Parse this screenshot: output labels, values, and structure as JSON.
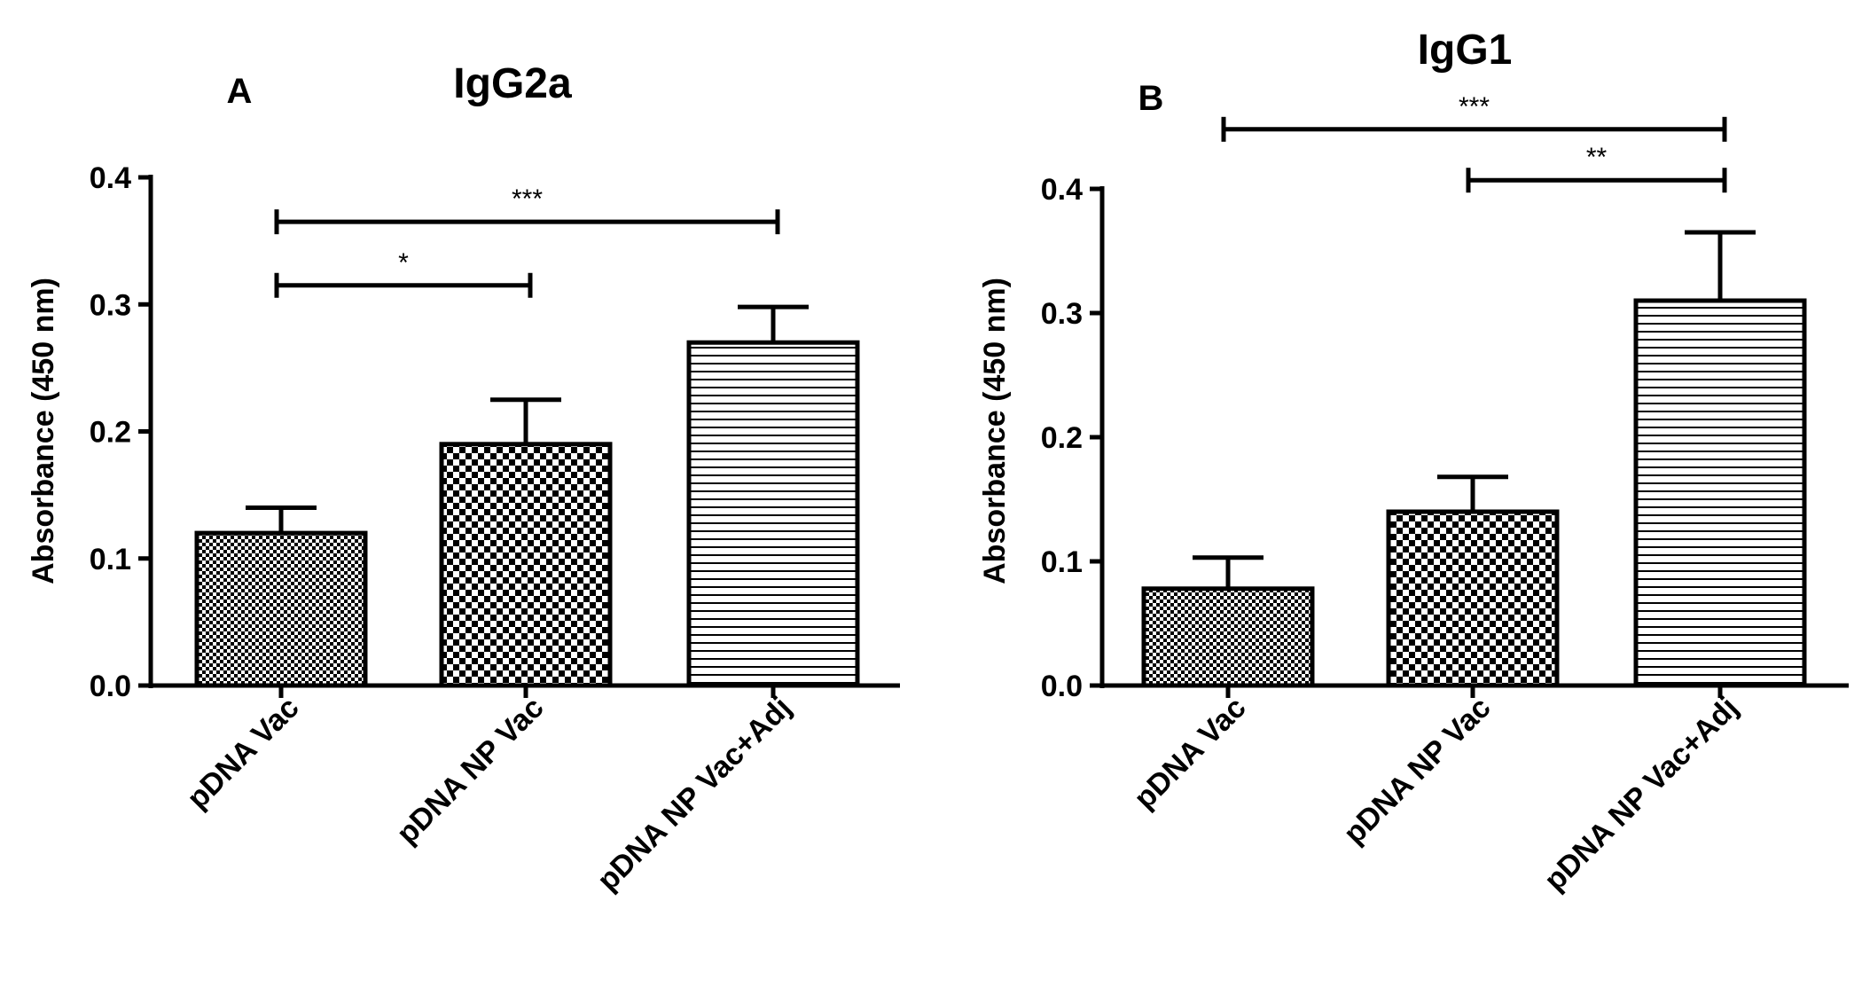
{
  "chart_data": [
    {
      "type": "bar",
      "panel": "A",
      "title": "IgG2a",
      "ylabel": "Absorbance (450 nm)",
      "xlabel": "",
      "ylim": [
        0,
        0.4
      ],
      "yticks": [
        "0.0",
        "0.1",
        "0.2",
        "0.3",
        "0.4"
      ],
      "categories": [
        "pDNA Vac",
        "pDNA NP Vac",
        "pDNA NP Vac+Adj"
      ],
      "values": [
        0.12,
        0.19,
        0.27
      ],
      "errors": [
        0.02,
        0.035,
        0.028
      ],
      "patterns": [
        "fine-check",
        "coarse-check",
        "horizontal-lines"
      ],
      "significance": [
        {
          "from": 0,
          "to": 2,
          "label": "***",
          "y": 0.365
        },
        {
          "from": 0,
          "to": 1,
          "label": "*",
          "y": 0.315
        }
      ],
      "grid": false
    },
    {
      "type": "bar",
      "panel": "B",
      "title": "IgG1",
      "ylabel": "Absorbance (450 nm)",
      "xlabel": "",
      "ylim": [
        0,
        0.4
      ],
      "yticks": [
        "0.0",
        "0.1",
        "0.2",
        "0.3",
        "0.4"
      ],
      "categories": [
        "pDNA Vac",
        "pDNA NP Vac",
        "pDNA NP Vac+Adj"
      ],
      "values": [
        0.078,
        0.14,
        0.31
      ],
      "errors": [
        0.025,
        0.028,
        0.055
      ],
      "patterns": [
        "fine-check",
        "coarse-check",
        "horizontal-lines"
      ],
      "significance": [
        {
          "from": 0,
          "to": 2,
          "label": "***",
          "y": 0.448
        },
        {
          "from": 1,
          "to": 2,
          "label": "**",
          "y": 0.407
        }
      ],
      "grid": false
    }
  ]
}
